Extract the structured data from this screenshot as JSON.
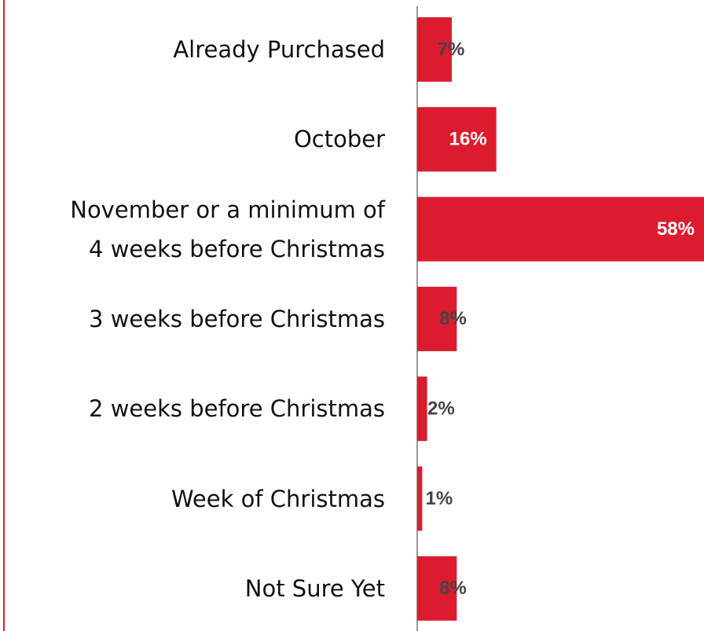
{
  "chart_data": {
    "type": "barh",
    "categories": [
      "Already Purchased",
      "October",
      "November or a minimum of\n4 weeks before Christmas",
      "3 weeks before Christmas",
      "2 weeks before Christmas",
      "Week of Christmas",
      "Not Sure Yet"
    ],
    "values": [
      7,
      16,
      58,
      8,
      2,
      1,
      8
    ],
    "value_labels": [
      "7%",
      "16%",
      "58%",
      "8%",
      "2%",
      "1%",
      "8%"
    ],
    "color": "#dc1c2e"
  }
}
